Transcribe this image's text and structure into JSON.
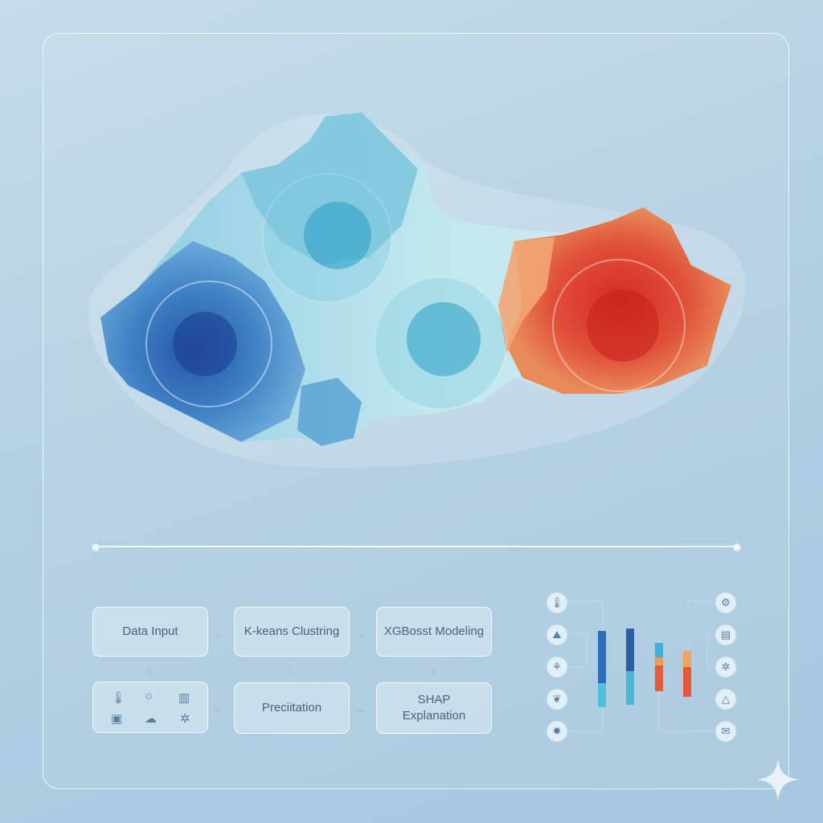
{
  "map": {
    "clusters": [
      {
        "name": "cluster-blue",
        "color": "#1e5fa8"
      },
      {
        "name": "cluster-teal",
        "color": "#2aa3c4"
      },
      {
        "name": "cluster-teal-center",
        "color": "#2a9dbd"
      },
      {
        "name": "cluster-red",
        "color": "#d9362a"
      }
    ]
  },
  "pipeline": {
    "data_input": "Data Input",
    "kmeans": "K-keans Clustring",
    "xgboost": "XGBosst Modeling",
    "prediction": "Preciitation",
    "shap_line1": "SHAP",
    "shap_line2": "Explanation",
    "input_icons": [
      "thermometer-icon",
      "sun-icon",
      "bar-chart-icon",
      "map-icon",
      "cloud-icon",
      "gear-icon"
    ]
  },
  "shap_chart": {
    "left_icons": [
      "thermometer-icon",
      "landscape-icon",
      "plant-icon",
      "leaf-icon",
      "sun-gear-icon"
    ],
    "right_icons": [
      "gear-icon",
      "document-icon",
      "settings-icon",
      "tent-icon",
      "mail-icon"
    ],
    "bar_colors": [
      "#2a6fb8",
      "#2a8fcf",
      "#e35a3c",
      "#e8573a"
    ]
  },
  "accent": {
    "sparkle": "#eef6fb"
  }
}
